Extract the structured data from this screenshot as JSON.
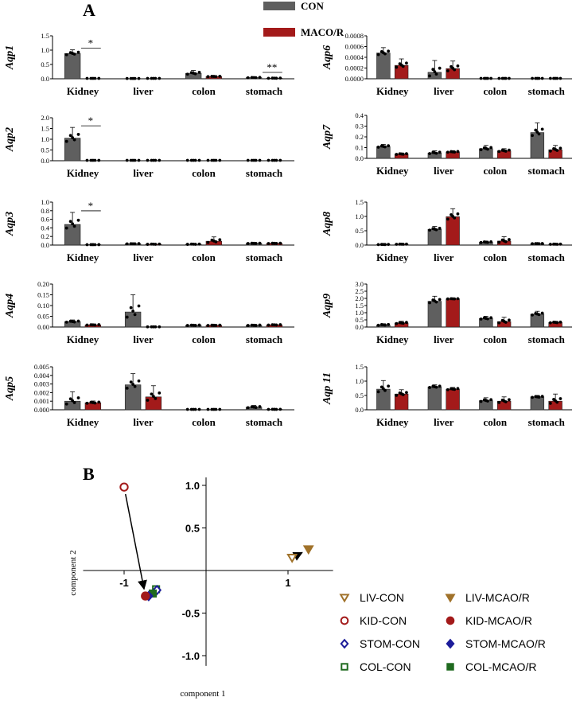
{
  "colors": {
    "con": "#5f5f5f",
    "mcao": "#a31a1a",
    "liv": "#a0722a",
    "kid": "#a31a1a",
    "stom": "#1c1c9a",
    "col": "#1f6a1f"
  },
  "panel_a": {
    "label": "A",
    "legend": [
      {
        "name": "CON",
        "color": "#5f5f5f"
      },
      {
        "name": "MACO/R",
        "color": "#a31a1a"
      }
    ]
  },
  "panel_b": {
    "label": "B"
  },
  "chart_data": [
    {
      "type": "bar",
      "gene": "Aqp1",
      "ylabel": "Aqp1",
      "categories": [
        "Kidney",
        "liver",
        "colon",
        "stomach"
      ],
      "ylim": [
        0,
        1.5
      ],
      "yticks": [
        "0.0",
        "0.5",
        "1.0",
        "1.5"
      ],
      "series": [
        {
          "name": "CON",
          "values": [
            0.88,
            0.01,
            0.19,
            0.04
          ],
          "err": [
            0.13,
            0,
            0.1,
            0.02
          ]
        },
        {
          "name": "MACO/R",
          "values": [
            0.0,
            0.0,
            0.08,
            0.02
          ],
          "err": [
            0,
            0,
            0.02,
            0.01
          ]
        }
      ],
      "annotations": [
        {
          "category": "Kidney",
          "text": "*"
        },
        {
          "category": "stomach",
          "text": "**"
        }
      ]
    },
    {
      "type": "bar",
      "gene": "Aqp6",
      "ylabel": "Aqp6",
      "categories": [
        "Kidney",
        "liver",
        "colon",
        "stomach"
      ],
      "ylim": [
        0,
        0.0008
      ],
      "yticks": [
        "0.0000",
        "0.0002",
        "0.0004",
        "0.0006",
        "0.0008"
      ],
      "series": [
        {
          "name": "CON",
          "values": [
            0.00048,
            0.00012,
            0.0,
            0.0
          ],
          "err": [
            0.0001,
            0.00022,
            0,
            0
          ]
        },
        {
          "name": "MACO/R",
          "values": [
            0.00025,
            0.00019,
            0.0,
            0.0
          ],
          "err": [
            0.00012,
            0.00014,
            0,
            0
          ]
        }
      ],
      "annotations": []
    },
    {
      "type": "bar",
      "gene": "Aqp2",
      "ylabel": "Aqp2",
      "categories": [
        "Kidney",
        "liver",
        "colon",
        "stomach"
      ],
      "ylim": [
        0,
        2.0
      ],
      "yticks": [
        "0.0",
        "0.5",
        "1.0",
        "1.5",
        "2.0"
      ],
      "series": [
        {
          "name": "CON",
          "values": [
            1.05,
            0.0,
            0.0,
            0.0
          ],
          "err": [
            0.5,
            0,
            0,
            0
          ]
        },
        {
          "name": "MACO/R",
          "values": [
            0.0,
            0.0,
            0.0,
            0.0
          ],
          "err": [
            0,
            0,
            0,
            0
          ]
        }
      ],
      "annotations": [
        {
          "category": "Kidney",
          "text": "*"
        }
      ]
    },
    {
      "type": "bar",
      "gene": "Aqp7",
      "ylabel": "Aqp7",
      "categories": [
        "Kidney",
        "liver",
        "colon",
        "stomach"
      ],
      "ylim": [
        0,
        0.4
      ],
      "yticks": [
        "0.0",
        "0.1",
        "0.2",
        "0.3",
        "0.4"
      ],
      "series": [
        {
          "name": "CON",
          "values": [
            0.11,
            0.05,
            0.09,
            0.24
          ],
          "err": [
            0.02,
            0.02,
            0.03,
            0.09
          ]
        },
        {
          "name": "MACO/R",
          "values": [
            0.04,
            0.06,
            0.07,
            0.08
          ],
          "err": [
            0.01,
            0.01,
            0.02,
            0.04
          ]
        }
      ],
      "annotations": []
    },
    {
      "type": "bar",
      "gene": "Aqp3",
      "ylabel": "Aqp3",
      "categories": [
        "Kidney",
        "liver",
        "colon",
        "stomach"
      ],
      "ylim": [
        0,
        1.0
      ],
      "yticks": [
        "0.0",
        "0.2",
        "0.4",
        "0.6",
        "0.8",
        "1.0"
      ],
      "series": [
        {
          "name": "CON",
          "values": [
            0.48,
            0.03,
            0.02,
            0.04
          ],
          "err": [
            0.28,
            0.01,
            0.01,
            0.01
          ]
        },
        {
          "name": "MACO/R",
          "values": [
            0.01,
            0.02,
            0.09,
            0.04
          ],
          "err": [
            0,
            0.01,
            0.1,
            0.01
          ]
        }
      ],
      "annotations": [
        {
          "category": "Kidney",
          "text": "*"
        }
      ]
    },
    {
      "type": "bar",
      "gene": "Aqp8",
      "ylabel": "Aqp8",
      "categories": [
        "Kidney",
        "liver",
        "colon",
        "stomach"
      ],
      "ylim": [
        0,
        1.5
      ],
      "yticks": [
        "0.0",
        "0.5",
        "1.0",
        "1.5"
      ],
      "series": [
        {
          "name": "CON",
          "values": [
            0.02,
            0.55,
            0.1,
            0.05
          ],
          "err": [
            0.01,
            0.1,
            0.04,
            0.01
          ]
        },
        {
          "name": "MACO/R",
          "values": [
            0.03,
            0.99,
            0.14,
            0.03
          ],
          "err": [
            0.01,
            0.28,
            0.15,
            0.01
          ]
        }
      ],
      "annotations": []
    },
    {
      "type": "bar",
      "gene": "Aqp4",
      "ylabel": "Aqp4",
      "categories": [
        "Kidney",
        "liver",
        "colon",
        "stomach"
      ],
      "ylim": [
        0,
        0.2
      ],
      "yticks": [
        "0.00",
        "0.05",
        "0.10",
        "0.15",
        "0.20"
      ],
      "series": [
        {
          "name": "CON",
          "values": [
            0.025,
            0.07,
            0.008,
            0.008
          ],
          "err": [
            0.008,
            0.08,
            0.003,
            0.003
          ]
        },
        {
          "name": "MACO/R",
          "values": [
            0.01,
            0.001,
            0.008,
            0.01
          ],
          "err": [
            0.003,
            0,
            0.002,
            0.003
          ]
        }
      ],
      "annotations": []
    },
    {
      "type": "bar",
      "gene": "Aqp9",
      "ylabel": "Aqp9",
      "categories": [
        "Kidney",
        "liver",
        "colon",
        "stomach"
      ],
      "ylim": [
        0,
        3.0
      ],
      "yticks": [
        "0.0",
        "0.5",
        "1.0",
        "1.5",
        "2.0",
        "2.5",
        "3.0"
      ],
      "series": [
        {
          "name": "CON",
          "values": [
            0.15,
            1.8,
            0.6,
            0.9
          ],
          "err": [
            0.08,
            0.35,
            0.15,
            0.2
          ]
        },
        {
          "name": "MACO/R",
          "values": [
            0.28,
            1.97,
            0.38,
            0.32
          ],
          "err": [
            0.12,
            0.03,
            0.3,
            0.08
          ]
        }
      ],
      "annotations": []
    },
    {
      "type": "bar",
      "gene": "Aqp5",
      "ylabel": "Aqp5",
      "categories": [
        "Kidney",
        "liver",
        "colon",
        "stomach"
      ],
      "ylim": [
        0,
        0.005
      ],
      "yticks": [
        "0.000",
        "0.001",
        "0.002",
        "0.003",
        "0.004",
        "0.005"
      ],
      "series": [
        {
          "name": "CON",
          "values": [
            0.001,
            0.0029,
            0.0,
            0.0003
          ],
          "err": [
            0.0011,
            0.0013,
            0,
            0.0002
          ]
        },
        {
          "name": "MACO/R",
          "values": [
            0.00082,
            0.0015,
            0.0,
            5e-05
          ],
          "err": [
            0.0002,
            0.0013,
            0,
            2e-05
          ]
        }
      ],
      "annotations": []
    },
    {
      "type": "bar",
      "gene": "Aqp 11",
      "ylabel": "Aqp 11",
      "categories": [
        "Kidney",
        "liver",
        "colon",
        "stomach"
      ],
      "ylim": [
        0,
        1.5
      ],
      "yticks": [
        "0.0",
        "0.5",
        "1.0",
        "1.5"
      ],
      "series": [
        {
          "name": "CON",
          "values": [
            0.72,
            0.8,
            0.32,
            0.45
          ],
          "err": [
            0.3,
            0.07,
            0.1,
            0.05
          ]
        },
        {
          "name": "MACO/R",
          "values": [
            0.55,
            0.72,
            0.3,
            0.3
          ],
          "err": [
            0.15,
            0.06,
            0.15,
            0.25
          ]
        }
      ],
      "annotations": []
    },
    {
      "type": "scatter",
      "title": "B",
      "xlabel": "component 1",
      "ylabel": "component 2",
      "xlim": [
        -1.5,
        1.5
      ],
      "ylim": [
        -1.2,
        1.2
      ],
      "xticks": [
        "-1",
        "1"
      ],
      "yticks": [
        "1.0",
        "0.5",
        "-0.5",
        "-1.0"
      ],
      "points": [
        {
          "name": "LIV-CON",
          "x": 1.05,
          "y": 0.15,
          "marker": "triangle-down-open",
          "color": "#a0722a"
        },
        {
          "name": "LIV-MCAO/R",
          "x": 1.25,
          "y": 0.25,
          "marker": "triangle-down-filled",
          "color": "#a0722a"
        },
        {
          "name": "KID-CON",
          "x": -1.0,
          "y": 0.98,
          "marker": "circle-open",
          "color": "#a31a1a"
        },
        {
          "name": "KID-MCAO/R",
          "x": -0.74,
          "y": -0.3,
          "marker": "circle-filled",
          "color": "#a31a1a"
        },
        {
          "name": "STOM-CON",
          "x": -0.6,
          "y": -0.23,
          "marker": "diamond-open",
          "color": "#1c1c9a"
        },
        {
          "name": "STOM-MCAO/R",
          "x": -0.7,
          "y": -0.3,
          "marker": "diamond-filled",
          "color": "#1c1c9a"
        },
        {
          "name": "COL-CON",
          "x": -0.61,
          "y": -0.22,
          "marker": "square-open",
          "color": "#1f6a1f"
        },
        {
          "name": "COL-MCAO/R",
          "x": -0.65,
          "y": -0.27,
          "marker": "square-filled",
          "color": "#1f6a1f"
        }
      ],
      "arrows": [
        {
          "from": "KID-CON",
          "to": "KID-MCAO/R"
        },
        {
          "from": "LIV-CON",
          "to": "LIV-MCAO/R"
        }
      ]
    }
  ]
}
